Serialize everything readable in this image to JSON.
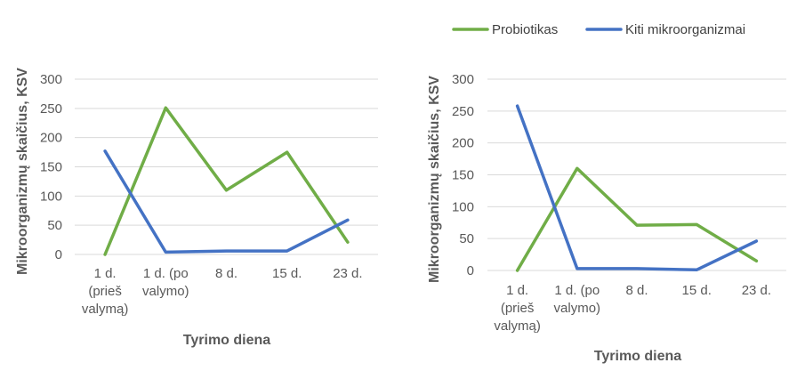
{
  "legend": [
    {
      "name": "Probiotikas",
      "color": "#70ad47"
    },
    {
      "name": "Kiti mikroorganizmai",
      "color": "#4472c4"
    }
  ],
  "chart_data": [
    {
      "type": "line",
      "title": "",
      "xlabel": "Tyrimo diena",
      "ylabel": "Mikroorganizmų skaičius, KSV",
      "categories": [
        [
          "1 d.",
          "(prieš",
          "valymą)"
        ],
        [
          "1 d. (po",
          "valymo)"
        ],
        [
          "8 d."
        ],
        [
          "15 d."
        ],
        [
          "23 d."
        ]
      ],
      "ylim": [
        0,
        300
      ],
      "yticks": [
        0,
        50,
        100,
        150,
        200,
        250,
        300
      ],
      "grid": true,
      "series": [
        {
          "name": "Probiotikas",
          "color": "#70ad47",
          "values": [
            0,
            251,
            110,
            175,
            21
          ]
        },
        {
          "name": "Kiti mikroorganizmai",
          "color": "#4472c4",
          "values": [
            177,
            4,
            6,
            6,
            59
          ]
        }
      ]
    },
    {
      "type": "line",
      "title": "",
      "xlabel": "Tyrimo diena",
      "ylabel": "Mikroorganizmų skaičius, KSV",
      "categories": [
        [
          "1 d.",
          "(prieš",
          "valymą)"
        ],
        [
          "1 d. (po",
          "valymo)"
        ],
        [
          "8 d."
        ],
        [
          "15 d."
        ],
        [
          "23 d."
        ]
      ],
      "ylim": [
        0,
        300
      ],
      "yticks": [
        0,
        50,
        100,
        150,
        200,
        250,
        300
      ],
      "grid": true,
      "series": [
        {
          "name": "Probiotikas",
          "color": "#70ad47",
          "values": [
            0,
            160,
            71,
            72,
            15
          ]
        },
        {
          "name": "Kiti mikroorganizmai",
          "color": "#4472c4",
          "values": [
            258,
            3,
            3,
            1,
            46
          ]
        }
      ]
    }
  ]
}
